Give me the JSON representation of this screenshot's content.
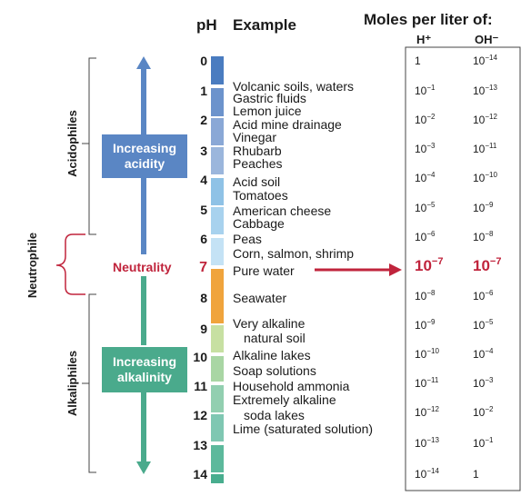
{
  "header": {
    "ph": "pH",
    "example": "Example",
    "moles": "Moles per liter of:",
    "h_ion": "H⁺",
    "oh_ion": "OH⁻"
  },
  "groups": {
    "acidophiles": "Acidophiles",
    "neutrophile": "Neutrophile",
    "alkaliphiles": "Alkaliphiles"
  },
  "labels": {
    "increasing_acidity": "Increasing acidity",
    "neutrality": "Neutrality",
    "increasing_alkalinity": "Increasing alkalinity"
  },
  "colors": {
    "acid_box": "#5a86c4",
    "alkaline_box": "#4aaa8c",
    "neutral": "#c0243c",
    "scale": [
      "#4a7cc0",
      "#6c93cc",
      "#8aa8d6",
      "#9bb6dc",
      "#8fc2e6",
      "#a8d2ee",
      "#c4e2f5",
      "#f0a43c",
      "#f0a43c",
      "#c7e0a2",
      "#a9d6a4",
      "#92cfb0",
      "#7fc7b2",
      "#5cb99c",
      "#48ad8e"
    ]
  },
  "ph_values": [
    "0",
    "1",
    "2",
    "3",
    "4",
    "5",
    "6",
    "7",
    "8",
    "9",
    "10",
    "11",
    "12",
    "13",
    "14"
  ],
  "examples": [
    "Volcanic soils, waters",
    "Gastric fluids",
    "Lemon juice",
    "Acid mine drainage",
    "Vinegar",
    "Rhubarb",
    "Peaches",
    "Acid soil",
    "Tomatoes",
    "American cheese",
    "Cabbage",
    "Peas",
    "Corn, salmon, shrimp",
    "Pure water",
    "Seawater",
    "Very alkaline",
    "natural soil",
    "Alkaline lakes",
    "Soap solutions",
    "Household ammonia",
    "Extremely alkaline",
    "soda lakes",
    "Lime (saturated solution)"
  ],
  "concentrations": [
    {
      "ph": 0,
      "h": "1",
      "oh": "10^-14"
    },
    {
      "ph": 1,
      "h": "10^-1",
      "oh": "10^-13"
    },
    {
      "ph": 2,
      "h": "10^-2",
      "oh": "10^-12"
    },
    {
      "ph": 3,
      "h": "10^-3",
      "oh": "10^-11"
    },
    {
      "ph": 4,
      "h": "10^-4",
      "oh": "10^-10"
    },
    {
      "ph": 5,
      "h": "10^-5",
      "oh": "10^-9"
    },
    {
      "ph": 6,
      "h": "10^-6",
      "oh": "10^-8"
    },
    {
      "ph": 7,
      "h": "10^-7",
      "oh": "10^-7"
    },
    {
      "ph": 8,
      "h": "10^-8",
      "oh": "10^-6"
    },
    {
      "ph": 9,
      "h": "10^-9",
      "oh": "10^-5"
    },
    {
      "ph": 10,
      "h": "10^-10",
      "oh": "10^-4"
    },
    {
      "ph": 11,
      "h": "10^-11",
      "oh": "10^-3"
    },
    {
      "ph": 12,
      "h": "10^-12",
      "oh": "10^-2"
    },
    {
      "ph": 13,
      "h": "10^-13",
      "oh": "10^-1"
    },
    {
      "ph": 14,
      "h": "10^-14",
      "oh": "1"
    }
  ]
}
